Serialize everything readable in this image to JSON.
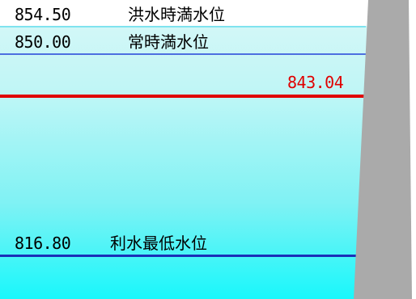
{
  "levels": {
    "flood": {
      "value": "854.50",
      "label": "洪水時満水位"
    },
    "normal": {
      "value": "850.00",
      "label": "常時満水位"
    },
    "current": {
      "value": "843.04"
    },
    "minimum": {
      "value": "816.80",
      "label": "利水最低水位"
    }
  },
  "colors": {
    "current_line": "#e00000",
    "normal_line": "#4d6fe0",
    "minimum_line": "#1a2fb8",
    "dam": "#aaaaaa"
  }
}
